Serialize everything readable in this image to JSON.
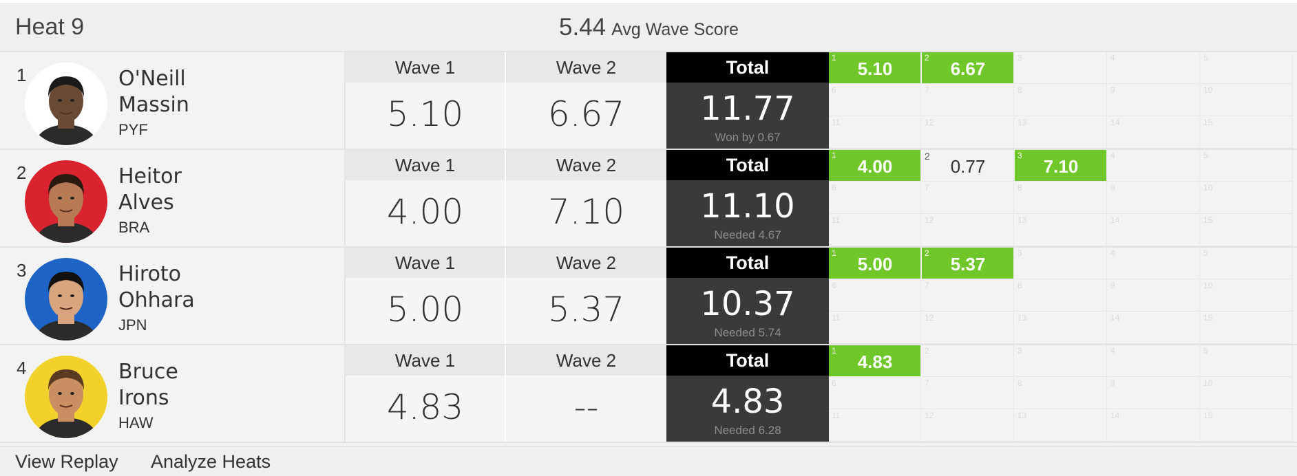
{
  "heat": {
    "title": "Heat 9",
    "avg_score": "5.44",
    "avg_label": "Avg Wave Score"
  },
  "labels": {
    "wave1": "Wave 1",
    "wave2": "Wave 2",
    "total": "Total"
  },
  "athletes": [
    {
      "rank": "1",
      "first_name": "O'Neill",
      "last_name": "Massin",
      "country": "PYF",
      "avatar_bg": "#ffffff",
      "skin": "#6b4a33",
      "hair": "#1a1a1a",
      "wave1": "5.10",
      "wave2": "6.67",
      "total": "11.77",
      "note": "Won by 0.67",
      "waves": [
        {
          "n": "1",
          "score": "5.10",
          "counted": true
        },
        {
          "n": "2",
          "score": "6.67",
          "counted": true
        }
      ],
      "grid_numbers": [
        "3",
        "4",
        "5",
        "6",
        "7",
        "8",
        "9",
        "10",
        "11",
        "12",
        "13",
        "14",
        "15"
      ]
    },
    {
      "rank": "2",
      "first_name": "Heitor",
      "last_name": "Alves",
      "country": "BRA",
      "avatar_bg": "#d9232e",
      "skin": "#b77a55",
      "hair": "#2a1a12",
      "wave1": "4.00",
      "wave2": "7.10",
      "total": "11.10",
      "note": "Needed 4.67",
      "waves": [
        {
          "n": "1",
          "score": "4.00",
          "counted": true
        },
        {
          "n": "2",
          "score": "0.77",
          "counted": false
        },
        {
          "n": "3",
          "score": "7.10",
          "counted": true
        }
      ],
      "grid_numbers": [
        "4",
        "5",
        "6",
        "7",
        "8",
        "9",
        "10",
        "11",
        "12",
        "13",
        "14",
        "15"
      ]
    },
    {
      "rank": "3",
      "first_name": "Hiroto",
      "last_name": "Ohhara",
      "country": "JPN",
      "avatar_bg": "#1e63c6",
      "skin": "#d9a57e",
      "hair": "#111111",
      "wave1": "5.00",
      "wave2": "5.37",
      "total": "10.37",
      "note": "Needed 5.74",
      "waves": [
        {
          "n": "1",
          "score": "5.00",
          "counted": true
        },
        {
          "n": "2",
          "score": "5.37",
          "counted": true
        }
      ],
      "grid_numbers": [
        "3",
        "4",
        "5",
        "6",
        "7",
        "8",
        "9",
        "10",
        "11",
        "12",
        "13",
        "14",
        "15"
      ]
    },
    {
      "rank": "4",
      "first_name": "Bruce",
      "last_name": "Irons",
      "country": "HAW",
      "avatar_bg": "#f2d22a",
      "skin": "#c98e62",
      "hair": "#5a3a20",
      "wave1": "4.83",
      "wave2": "--",
      "total": "4.83",
      "note": "Needed 6.28",
      "waves": [
        {
          "n": "1",
          "score": "4.83",
          "counted": true
        }
      ],
      "grid_numbers": [
        "2",
        "3",
        "4",
        "5",
        "6",
        "7",
        "8",
        "9",
        "10",
        "11",
        "12",
        "13",
        "14",
        "15"
      ]
    }
  ],
  "footer": {
    "replay": "View Replay",
    "analyze": "Analyze Heats"
  }
}
